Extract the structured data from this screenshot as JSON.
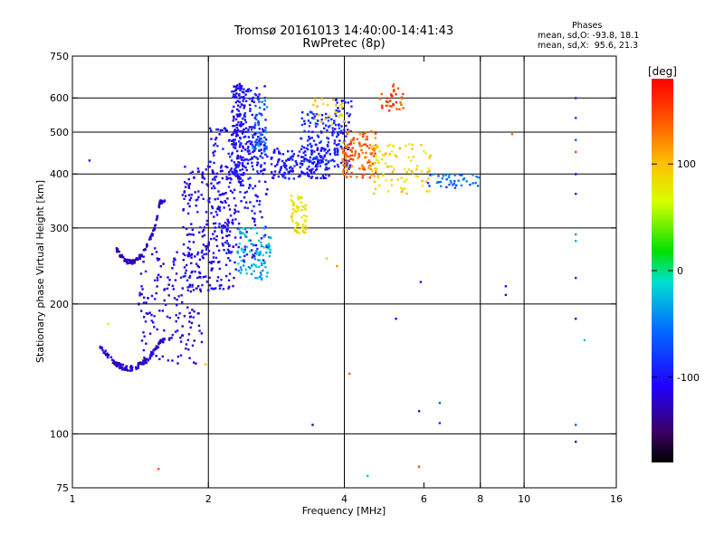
{
  "header": {
    "title_line1": "Tromsø 20161013 14:40:00-14:41:43",
    "title_line2": "RwPretec (8p)"
  },
  "phases_info": {
    "heading": "Phases",
    "o_line": "mean, sd,O: -93.8, 18.1",
    "x_line": "mean, sd,X:  95.6, 21.3"
  },
  "colorbar": {
    "unit_label": "[deg]",
    "ticks": [
      {
        "value": 100,
        "label": "100"
      },
      {
        "value": 0,
        "label": "0"
      },
      {
        "value": -100,
        "label": "-100"
      }
    ],
    "range": [
      -180,
      180
    ]
  },
  "chart_data": {
    "type": "scatter",
    "title": "Tromsø 20161013 14:40:00-14:41:43",
    "subtitle": "RwPretec (8p)",
    "xlabel": "Frequency [MHz]",
    "ylabel": "Stationary phase Virtual Height [km]",
    "x_scale": "log",
    "y_scale": "log",
    "xlim": [
      1,
      16
    ],
    "ylim": [
      75,
      750
    ],
    "x_ticks": [
      1,
      2,
      4,
      6,
      8,
      10,
      16
    ],
    "x_tick_labels": [
      "1",
      "2",
      "4",
      "6",
      "8",
      "10",
      "16"
    ],
    "y_ticks": [
      75,
      100,
      200,
      300,
      400,
      500,
      600,
      750
    ],
    "y_tick_labels": [
      "75",
      "100",
      "200",
      "300",
      "400",
      "500",
      "600",
      "750"
    ],
    "x_grid": [
      2,
      4,
      8,
      10
    ],
    "y_grid": [
      100,
      200,
      300,
      400,
      500,
      600
    ],
    "color_metric": "phase [deg]",
    "clusters": [
      {
        "f": [
          1.15,
          1.6
        ],
        "h": [
          142,
          165
        ],
        "phase": -120,
        "n": 140,
        "shape": "arc_low"
      },
      {
        "f": [
          1.25,
          1.6
        ],
        "h": [
          250,
          345
        ],
        "phase": -125,
        "n": 110,
        "shape": "arc_high"
      },
      {
        "f": [
          1.4,
          1.95
        ],
        "h": [
          145,
          270
        ],
        "phase": -115,
        "n": 160
      },
      {
        "f": [
          1.75,
          2.3
        ],
        "h": [
          215,
          420
        ],
        "phase": -110,
        "n": 240
      },
      {
        "f": [
          2.0,
          2.7
        ],
        "h": [
          250,
          520
        ],
        "phase": -105,
        "n": 200
      },
      {
        "f": [
          2.25,
          2.4
        ],
        "h": [
          380,
          650
        ],
        "phase": -105,
        "n": 160
      },
      {
        "f": [
          2.4,
          2.7
        ],
        "h": [
          400,
          640
        ],
        "phase": -100,
        "n": 110
      },
      {
        "f": [
          2.3,
          2.75
        ],
        "h": [
          228,
          300
        ],
        "phase": -30,
        "n": 90
      },
      {
        "f": [
          2.5,
          2.7
        ],
        "h": [
          450,
          600
        ],
        "phase": -55,
        "n": 35
      },
      {
        "f": [
          2.75,
          3.7
        ],
        "h": [
          390,
          460
        ],
        "phase": -100,
        "n": 160
      },
      {
        "f": [
          3.2,
          3.9
        ],
        "h": [
          420,
          560
        ],
        "phase": -90,
        "n": 120
      },
      {
        "f": [
          3.05,
          3.3
        ],
        "h": [
          290,
          360
        ],
        "phase": 80,
        "n": 60
      },
      {
        "f": [
          3.8,
          4.15
        ],
        "h": [
          410,
          600
        ],
        "phase": -95,
        "n": 70
      },
      {
        "f": [
          3.95,
          4.7
        ],
        "h": [
          390,
          510
        ],
        "phase": 135,
        "n": 120
      },
      {
        "f": [
          4.6,
          6.2
        ],
        "h": [
          360,
          470
        ],
        "phase": 90,
        "n": 90
      },
      {
        "f": [
          4.8,
          5.4
        ],
        "h": [
          560,
          650
        ],
        "phase": 150,
        "n": 35
      },
      {
        "f": [
          6.0,
          8.0
        ],
        "h": [
          370,
          400
        ],
        "phase": -60,
        "n": 40
      },
      {
        "f": [
          3.4,
          4.0
        ],
        "h": [
          520,
          600
        ],
        "phase": 90,
        "n": 25
      }
    ],
    "isolated_points": [
      {
        "f": 13.0,
        "h": 600,
        "phase": -100
      },
      {
        "f": 13.0,
        "h": 540,
        "phase": -80
      },
      {
        "f": 13.0,
        "h": 480,
        "phase": -60
      },
      {
        "f": 13.0,
        "h": 450,
        "phase": 150
      },
      {
        "f": 13.0,
        "h": 400,
        "phase": -110
      },
      {
        "f": 13.0,
        "h": 360,
        "phase": -95
      },
      {
        "f": 13.0,
        "h": 290,
        "phase": -40
      },
      {
        "f": 13.0,
        "h": 280,
        "phase": -30
      },
      {
        "f": 13.0,
        "h": 230,
        "phase": -90
      },
      {
        "f": 13.0,
        "h": 185,
        "phase": -110
      },
      {
        "f": 13.0,
        "h": 105,
        "phase": -60
      },
      {
        "f": 13.0,
        "h": 96,
        "phase": -120
      },
      {
        "f": 13.6,
        "h": 165,
        "phase": -20
      },
      {
        "f": 9.1,
        "h": 220,
        "phase": -120
      },
      {
        "f": 9.1,
        "h": 210,
        "phase": -110
      },
      {
        "f": 9.4,
        "h": 495,
        "phase": 130
      },
      {
        "f": 5.9,
        "h": 225,
        "phase": -100
      },
      {
        "f": 5.85,
        "h": 113,
        "phase": -120
      },
      {
        "f": 6.5,
        "h": 118,
        "phase": -60
      },
      {
        "f": 6.5,
        "h": 106,
        "phase": -90
      },
      {
        "f": 5.85,
        "h": 84,
        "phase": 150
      },
      {
        "f": 4.5,
        "h": 80,
        "phase": -20
      },
      {
        "f": 5.2,
        "h": 185,
        "phase": -110
      },
      {
        "f": 4.1,
        "h": 138,
        "phase": 140
      },
      {
        "f": 3.4,
        "h": 105,
        "phase": -140
      },
      {
        "f": 1.2,
        "h": 180,
        "phase": 60
      },
      {
        "f": 1.55,
        "h": 83,
        "phase": 140
      },
      {
        "f": 1.09,
        "h": 430,
        "phase": -110
      },
      {
        "f": 1.97,
        "h": 145,
        "phase": 100
      },
      {
        "f": 3.65,
        "h": 255,
        "phase": 100
      },
      {
        "f": 3.85,
        "h": 245,
        "phase": 120
      }
    ]
  }
}
